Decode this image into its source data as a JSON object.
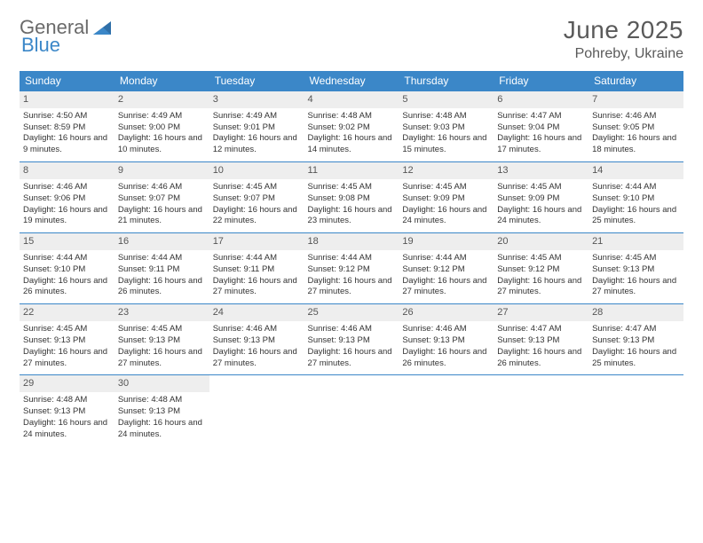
{
  "brand": {
    "part1": "General",
    "part2": "Blue"
  },
  "title": "June 2025",
  "location": "Pohreby, Ukraine",
  "colors": {
    "header_bg": "#3b87c8",
    "header_text": "#ffffff",
    "daynum_bg": "#eeeeee",
    "text": "#333333",
    "title_text": "#5a5a5a",
    "rule": "#3b87c8"
  },
  "dayNames": [
    "Sunday",
    "Monday",
    "Tuesday",
    "Wednesday",
    "Thursday",
    "Friday",
    "Saturday"
  ],
  "days": [
    {
      "n": 1,
      "sunrise": "4:50 AM",
      "sunset": "8:59 PM",
      "daylight": "16 hours and 9 minutes."
    },
    {
      "n": 2,
      "sunrise": "4:49 AM",
      "sunset": "9:00 PM",
      "daylight": "16 hours and 10 minutes."
    },
    {
      "n": 3,
      "sunrise": "4:49 AM",
      "sunset": "9:01 PM",
      "daylight": "16 hours and 12 minutes."
    },
    {
      "n": 4,
      "sunrise": "4:48 AM",
      "sunset": "9:02 PM",
      "daylight": "16 hours and 14 minutes."
    },
    {
      "n": 5,
      "sunrise": "4:48 AM",
      "sunset": "9:03 PM",
      "daylight": "16 hours and 15 minutes."
    },
    {
      "n": 6,
      "sunrise": "4:47 AM",
      "sunset": "9:04 PM",
      "daylight": "16 hours and 17 minutes."
    },
    {
      "n": 7,
      "sunrise": "4:46 AM",
      "sunset": "9:05 PM",
      "daylight": "16 hours and 18 minutes."
    },
    {
      "n": 8,
      "sunrise": "4:46 AM",
      "sunset": "9:06 PM",
      "daylight": "16 hours and 19 minutes."
    },
    {
      "n": 9,
      "sunrise": "4:46 AM",
      "sunset": "9:07 PM",
      "daylight": "16 hours and 21 minutes."
    },
    {
      "n": 10,
      "sunrise": "4:45 AM",
      "sunset": "9:07 PM",
      "daylight": "16 hours and 22 minutes."
    },
    {
      "n": 11,
      "sunrise": "4:45 AM",
      "sunset": "9:08 PM",
      "daylight": "16 hours and 23 minutes."
    },
    {
      "n": 12,
      "sunrise": "4:45 AM",
      "sunset": "9:09 PM",
      "daylight": "16 hours and 24 minutes."
    },
    {
      "n": 13,
      "sunrise": "4:45 AM",
      "sunset": "9:09 PM",
      "daylight": "16 hours and 24 minutes."
    },
    {
      "n": 14,
      "sunrise": "4:44 AM",
      "sunset": "9:10 PM",
      "daylight": "16 hours and 25 minutes."
    },
    {
      "n": 15,
      "sunrise": "4:44 AM",
      "sunset": "9:10 PM",
      "daylight": "16 hours and 26 minutes."
    },
    {
      "n": 16,
      "sunrise": "4:44 AM",
      "sunset": "9:11 PM",
      "daylight": "16 hours and 26 minutes."
    },
    {
      "n": 17,
      "sunrise": "4:44 AM",
      "sunset": "9:11 PM",
      "daylight": "16 hours and 27 minutes."
    },
    {
      "n": 18,
      "sunrise": "4:44 AM",
      "sunset": "9:12 PM",
      "daylight": "16 hours and 27 minutes."
    },
    {
      "n": 19,
      "sunrise": "4:44 AM",
      "sunset": "9:12 PM",
      "daylight": "16 hours and 27 minutes."
    },
    {
      "n": 20,
      "sunrise": "4:45 AM",
      "sunset": "9:12 PM",
      "daylight": "16 hours and 27 minutes."
    },
    {
      "n": 21,
      "sunrise": "4:45 AM",
      "sunset": "9:13 PM",
      "daylight": "16 hours and 27 minutes."
    },
    {
      "n": 22,
      "sunrise": "4:45 AM",
      "sunset": "9:13 PM",
      "daylight": "16 hours and 27 minutes."
    },
    {
      "n": 23,
      "sunrise": "4:45 AM",
      "sunset": "9:13 PM",
      "daylight": "16 hours and 27 minutes."
    },
    {
      "n": 24,
      "sunrise": "4:46 AM",
      "sunset": "9:13 PM",
      "daylight": "16 hours and 27 minutes."
    },
    {
      "n": 25,
      "sunrise": "4:46 AM",
      "sunset": "9:13 PM",
      "daylight": "16 hours and 27 minutes."
    },
    {
      "n": 26,
      "sunrise": "4:46 AM",
      "sunset": "9:13 PM",
      "daylight": "16 hours and 26 minutes."
    },
    {
      "n": 27,
      "sunrise": "4:47 AM",
      "sunset": "9:13 PM",
      "daylight": "16 hours and 26 minutes."
    },
    {
      "n": 28,
      "sunrise": "4:47 AM",
      "sunset": "9:13 PM",
      "daylight": "16 hours and 25 minutes."
    },
    {
      "n": 29,
      "sunrise": "4:48 AM",
      "sunset": "9:13 PM",
      "daylight": "16 hours and 24 minutes."
    },
    {
      "n": 30,
      "sunrise": "4:48 AM",
      "sunset": "9:13 PM",
      "daylight": "16 hours and 24 minutes."
    }
  ],
  "labels": {
    "sunrise": "Sunrise:",
    "sunset": "Sunset:",
    "daylight": "Daylight:"
  },
  "layout": {
    "startDayOfWeek": 0,
    "totalCells": 35
  }
}
